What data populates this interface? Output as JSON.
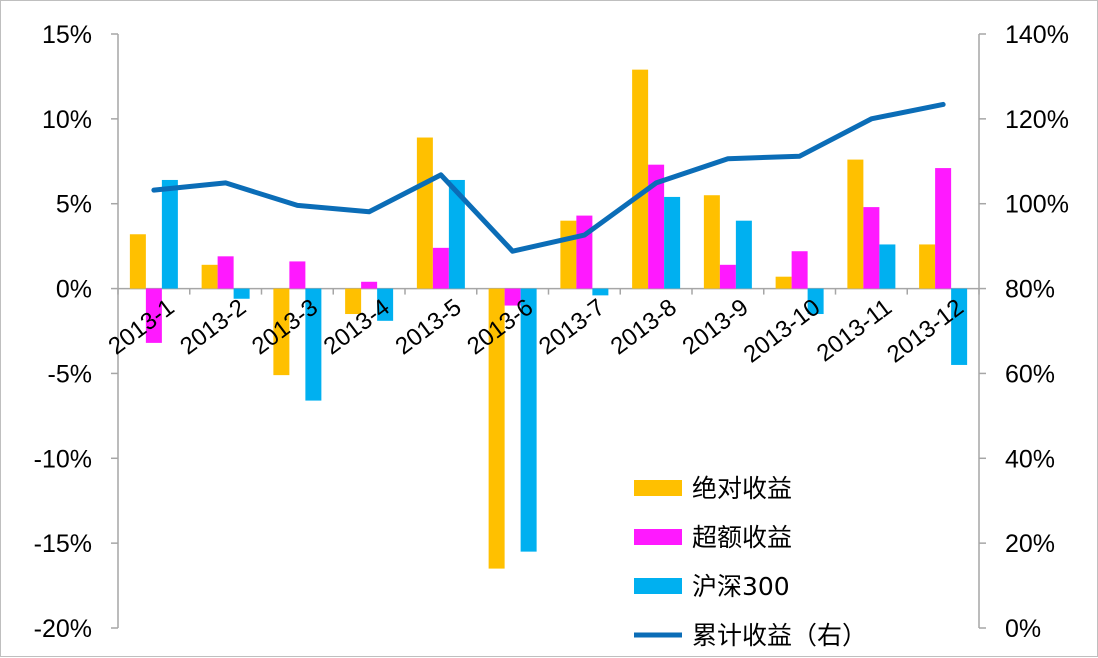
{
  "chart_data": {
    "type": "bar",
    "categories": [
      "2013-1",
      "2013-2",
      "2013-3",
      "2013-4",
      "2013-5",
      "2013-6",
      "2013-7",
      "2013-8",
      "2013-9",
      "2013-10",
      "2013-11",
      "2013-12"
    ],
    "series": [
      {
        "name": "绝对收益",
        "axis": "left",
        "color": "#ffc000",
        "values": [
          3.2,
          1.4,
          -5.1,
          -1.5,
          8.9,
          -16.5,
          4.0,
          12.9,
          5.5,
          0.7,
          7.6,
          2.6
        ]
      },
      {
        "name": "超额收益",
        "axis": "left",
        "color": "#ff19ff",
        "values": [
          -3.2,
          1.9,
          1.6,
          0.4,
          2.4,
          -1.0,
          4.3,
          7.3,
          1.4,
          2.2,
          4.8,
          7.1
        ]
      },
      {
        "name": "沪深300",
        "axis": "left",
        "color": "#00b0f0",
        "values": [
          6.4,
          -0.6,
          -6.6,
          -1.9,
          6.4,
          -15.5,
          -0.4,
          5.4,
          4.0,
          -1.5,
          2.6,
          -4.5
        ]
      }
    ],
    "line_series": {
      "name": "累计收益（右）",
      "axis": "right",
      "color": "#0b6db7",
      "values": [
        103.2,
        104.9,
        99.6,
        98.1,
        106.8,
        88.8,
        92.6,
        104.9,
        110.6,
        111.2,
        120.0,
        123.4
      ]
    },
    "y_left": {
      "min": -20,
      "max": 15,
      "step": 5,
      "tick_labels": [
        "-20%",
        "-15%",
        "-10%",
        "-5%",
        "0%",
        "5%",
        "10%",
        "15%"
      ]
    },
    "y_right": {
      "min": 0,
      "max": 140,
      "step": 20,
      "tick_labels": [
        "0%",
        "20%",
        "40%",
        "60%",
        "80%",
        "100%",
        "120%",
        "140%"
      ]
    },
    "legend": {
      "position": "bottom-right",
      "entries": [
        "绝对收益",
        "超额收益",
        "沪深300",
        "累计收益（右）"
      ]
    },
    "grid": false,
    "title": "",
    "xlabel": "",
    "ylabel": ""
  }
}
